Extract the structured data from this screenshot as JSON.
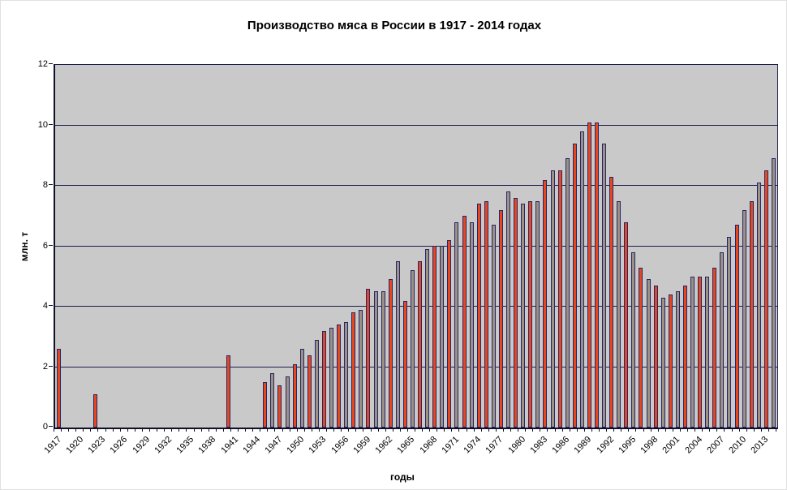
{
  "page": {
    "background": "#ffffff"
  },
  "chart_data": {
    "type": "bar",
    "title": "Производство мяса в России в 1917 - 2014 годах",
    "xlabel": "годы",
    "ylabel": "млн. т",
    "ylim": [
      0,
      12
    ],
    "yticks": [
      0,
      2,
      4,
      6,
      8,
      10,
      12
    ],
    "grid": true,
    "legend_position": "none",
    "plot_bg": "#c9c9c9",
    "grid_color": "#1c1c4e",
    "bar_outline_color": "#25256b",
    "bar_palette": {
      "red": "#e8471d",
      "tan": "#9d9181"
    },
    "x_range_years": [
      1917,
      2014
    ],
    "x_tick_labels": [
      1917,
      1920,
      1923,
      1926,
      1929,
      1932,
      1935,
      1938,
      1941,
      1944,
      1947,
      1950,
      1953,
      1956,
      1959,
      1962,
      1965,
      1968,
      1971,
      1974,
      1977,
      1980,
      1983,
      1986,
      1989,
      1992,
      1995,
      1998,
      2001,
      2004,
      2007,
      2010,
      2013
    ],
    "series": [
      {
        "year": 1917,
        "value": 2.6,
        "color": "red"
      },
      {
        "year": 1922,
        "value": 1.1,
        "color": "red"
      },
      {
        "year": 1940,
        "value": 2.4,
        "color": "red"
      },
      {
        "year": 1945,
        "value": 1.5,
        "color": "red"
      },
      {
        "year": 1946,
        "value": 1.8,
        "color": "tan"
      },
      {
        "year": 1947,
        "value": 1.4,
        "color": "red"
      },
      {
        "year": 1948,
        "value": 1.7,
        "color": "tan"
      },
      {
        "year": 1949,
        "value": 2.1,
        "color": "red"
      },
      {
        "year": 1950,
        "value": 2.6,
        "color": "tan"
      },
      {
        "year": 1951,
        "value": 2.4,
        "color": "red"
      },
      {
        "year": 1952,
        "value": 2.9,
        "color": "tan"
      },
      {
        "year": 1953,
        "value": 3.2,
        "color": "red"
      },
      {
        "year": 1954,
        "value": 3.3,
        "color": "tan"
      },
      {
        "year": 1955,
        "value": 3.4,
        "color": "red"
      },
      {
        "year": 1956,
        "value": 3.5,
        "color": "tan"
      },
      {
        "year": 1957,
        "value": 3.8,
        "color": "red"
      },
      {
        "year": 1958,
        "value": 3.9,
        "color": "tan"
      },
      {
        "year": 1959,
        "value": 4.6,
        "color": "red"
      },
      {
        "year": 1960,
        "value": 4.5,
        "color": "tan"
      },
      {
        "year": 1961,
        "value": 4.5,
        "color": "tan"
      },
      {
        "year": 1962,
        "value": 4.9,
        "color": "red"
      },
      {
        "year": 1963,
        "value": 5.5,
        "color": "tan"
      },
      {
        "year": 1964,
        "value": 4.2,
        "color": "red"
      },
      {
        "year": 1965,
        "value": 5.2,
        "color": "tan"
      },
      {
        "year": 1966,
        "value": 5.5,
        "color": "red"
      },
      {
        "year": 1967,
        "value": 5.9,
        "color": "tan"
      },
      {
        "year": 1968,
        "value": 6.0,
        "color": "red"
      },
      {
        "year": 1969,
        "value": 6.0,
        "color": "tan"
      },
      {
        "year": 1970,
        "value": 6.2,
        "color": "red"
      },
      {
        "year": 1971,
        "value": 6.8,
        "color": "tan"
      },
      {
        "year": 1972,
        "value": 7.0,
        "color": "red"
      },
      {
        "year": 1973,
        "value": 6.8,
        "color": "tan"
      },
      {
        "year": 1974,
        "value": 7.4,
        "color": "red"
      },
      {
        "year": 1975,
        "value": 7.5,
        "color": "red"
      },
      {
        "year": 1976,
        "value": 6.7,
        "color": "tan"
      },
      {
        "year": 1977,
        "value": 7.2,
        "color": "red"
      },
      {
        "year": 1978,
        "value": 7.8,
        "color": "tan"
      },
      {
        "year": 1979,
        "value": 7.6,
        "color": "red"
      },
      {
        "year": 1980,
        "value": 7.4,
        "color": "tan"
      },
      {
        "year": 1981,
        "value": 7.5,
        "color": "red"
      },
      {
        "year": 1982,
        "value": 7.5,
        "color": "tan"
      },
      {
        "year": 1983,
        "value": 8.2,
        "color": "red"
      },
      {
        "year": 1984,
        "value": 8.5,
        "color": "tan"
      },
      {
        "year": 1985,
        "value": 8.5,
        "color": "red"
      },
      {
        "year": 1986,
        "value": 8.9,
        "color": "tan"
      },
      {
        "year": 1987,
        "value": 9.4,
        "color": "red"
      },
      {
        "year": 1988,
        "value": 9.8,
        "color": "tan"
      },
      {
        "year": 1989,
        "value": 10.1,
        "color": "red"
      },
      {
        "year": 1990,
        "value": 10.1,
        "color": "red"
      },
      {
        "year": 1991,
        "value": 9.4,
        "color": "tan"
      },
      {
        "year": 1992,
        "value": 8.3,
        "color": "red"
      },
      {
        "year": 1993,
        "value": 7.5,
        "color": "tan"
      },
      {
        "year": 1994,
        "value": 6.8,
        "color": "red"
      },
      {
        "year": 1995,
        "value": 5.8,
        "color": "tan"
      },
      {
        "year": 1996,
        "value": 5.3,
        "color": "red"
      },
      {
        "year": 1997,
        "value": 4.9,
        "color": "tan"
      },
      {
        "year": 1998,
        "value": 4.7,
        "color": "red"
      },
      {
        "year": 1999,
        "value": 4.3,
        "color": "tan"
      },
      {
        "year": 2000,
        "value": 4.4,
        "color": "red"
      },
      {
        "year": 2001,
        "value": 4.5,
        "color": "tan"
      },
      {
        "year": 2002,
        "value": 4.7,
        "color": "red"
      },
      {
        "year": 2003,
        "value": 5.0,
        "color": "tan"
      },
      {
        "year": 2004,
        "value": 5.0,
        "color": "red"
      },
      {
        "year": 2005,
        "value": 5.0,
        "color": "tan"
      },
      {
        "year": 2006,
        "value": 5.3,
        "color": "red"
      },
      {
        "year": 2007,
        "value": 5.8,
        "color": "tan"
      },
      {
        "year": 2008,
        "value": 6.3,
        "color": "tan"
      },
      {
        "year": 2009,
        "value": 6.7,
        "color": "red"
      },
      {
        "year": 2010,
        "value": 7.2,
        "color": "tan"
      },
      {
        "year": 2011,
        "value": 7.5,
        "color": "red"
      },
      {
        "year": 2012,
        "value": 8.1,
        "color": "tan"
      },
      {
        "year": 2013,
        "value": 8.5,
        "color": "red"
      },
      {
        "year": 2014,
        "value": 8.9,
        "color": "tan"
      }
    ]
  }
}
